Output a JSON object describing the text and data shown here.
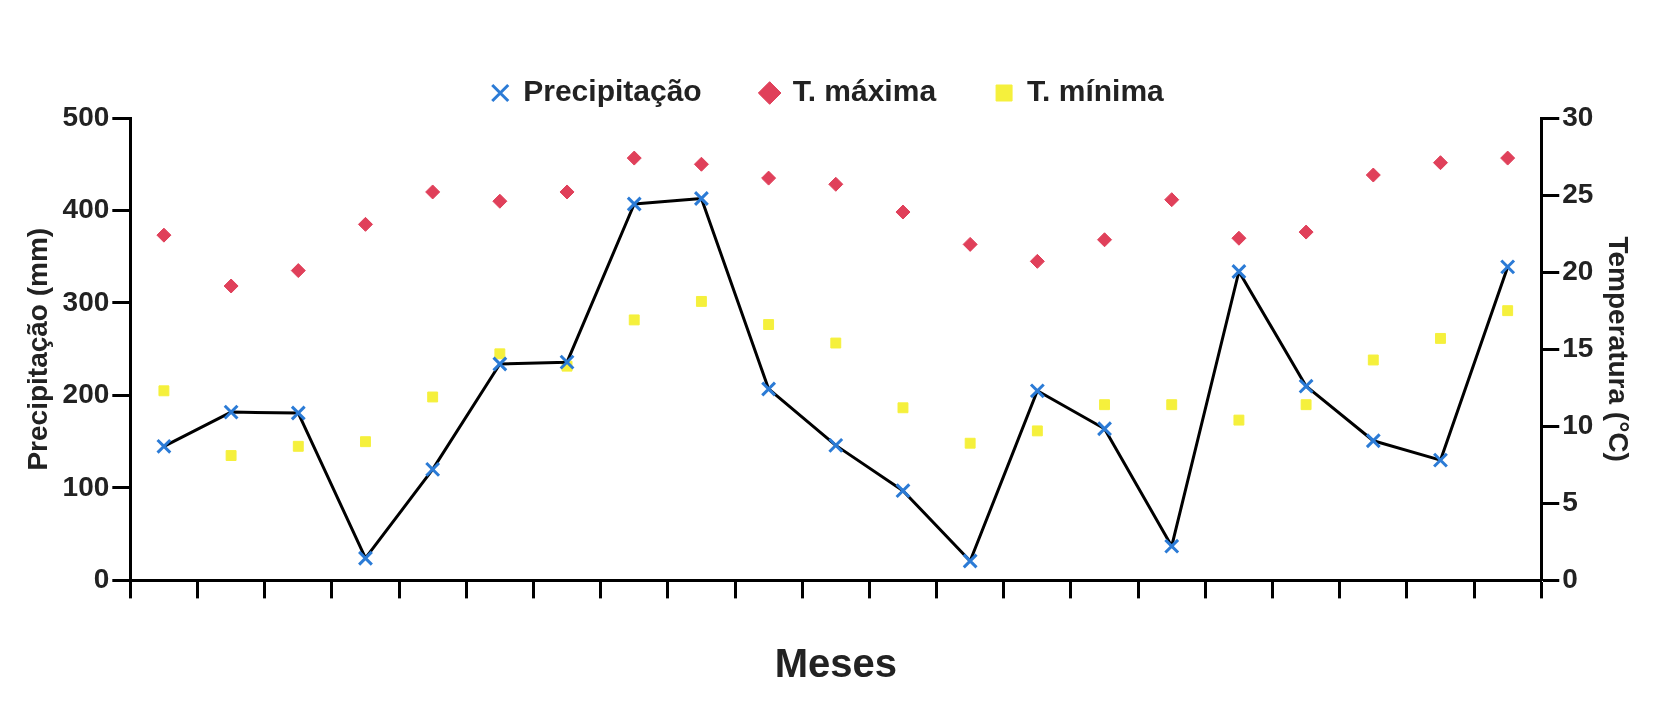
{
  "chart_data": {
    "type": "line",
    "xlabel": "Meses",
    "ylabel": "Precipitação (mm)",
    "y2label": "Temperatura (°C)",
    "categories": [
      null,
      null,
      null,
      null,
      null,
      null,
      null,
      null,
      null,
      null,
      null,
      null,
      null,
      null,
      null,
      null,
      null,
      null,
      null,
      null,
      null
    ],
    "series": [
      {
        "name": "Precipitação",
        "marker": "cross",
        "color": "#2b7bd6",
        "values": [
          145,
          182,
          181,
          24,
          120,
          234,
          236,
          407,
          413,
          207,
          146,
          97,
          21,
          205,
          164,
          37,
          334,
          210,
          151,
          130,
          339
        ]
      },
      {
        "name": "T. máxima",
        "type": "scatter",
        "marker": "diamond",
        "axis": "y2",
        "color": "#e0405a",
        "values": [
          22.4,
          19.1,
          20.1,
          23.1,
          25.2,
          24.6,
          25.2,
          27.4,
          27.0,
          26.1,
          25.7,
          23.9,
          21.8,
          20.7,
          22.1,
          24.7,
          22.2,
          22.6,
          26.3,
          27.1,
          27.4
        ]
      },
      {
        "name": "T. mínima",
        "type": "scatter",
        "marker": "square",
        "axis": "y2",
        "color": "#f5f03c",
        "values": [
          12.3,
          8.1,
          8.7,
          9.0,
          11.9,
          14.7,
          13.9,
          16.9,
          18.1,
          16.6,
          15.4,
          11.2,
          8.9,
          9.7,
          11.4,
          11.4,
          10.4,
          11.4,
          14.3,
          15.7,
          17.5
        ]
      }
    ],
    "ylim": [
      0,
      500
    ],
    "yticks": [
      0,
      100,
      200,
      300,
      400,
      500
    ],
    "y2lim": [
      0,
      30
    ],
    "y2ticks": [
      0,
      5,
      10,
      15,
      20,
      25,
      30
    ],
    "grid": false,
    "legend": "top"
  }
}
